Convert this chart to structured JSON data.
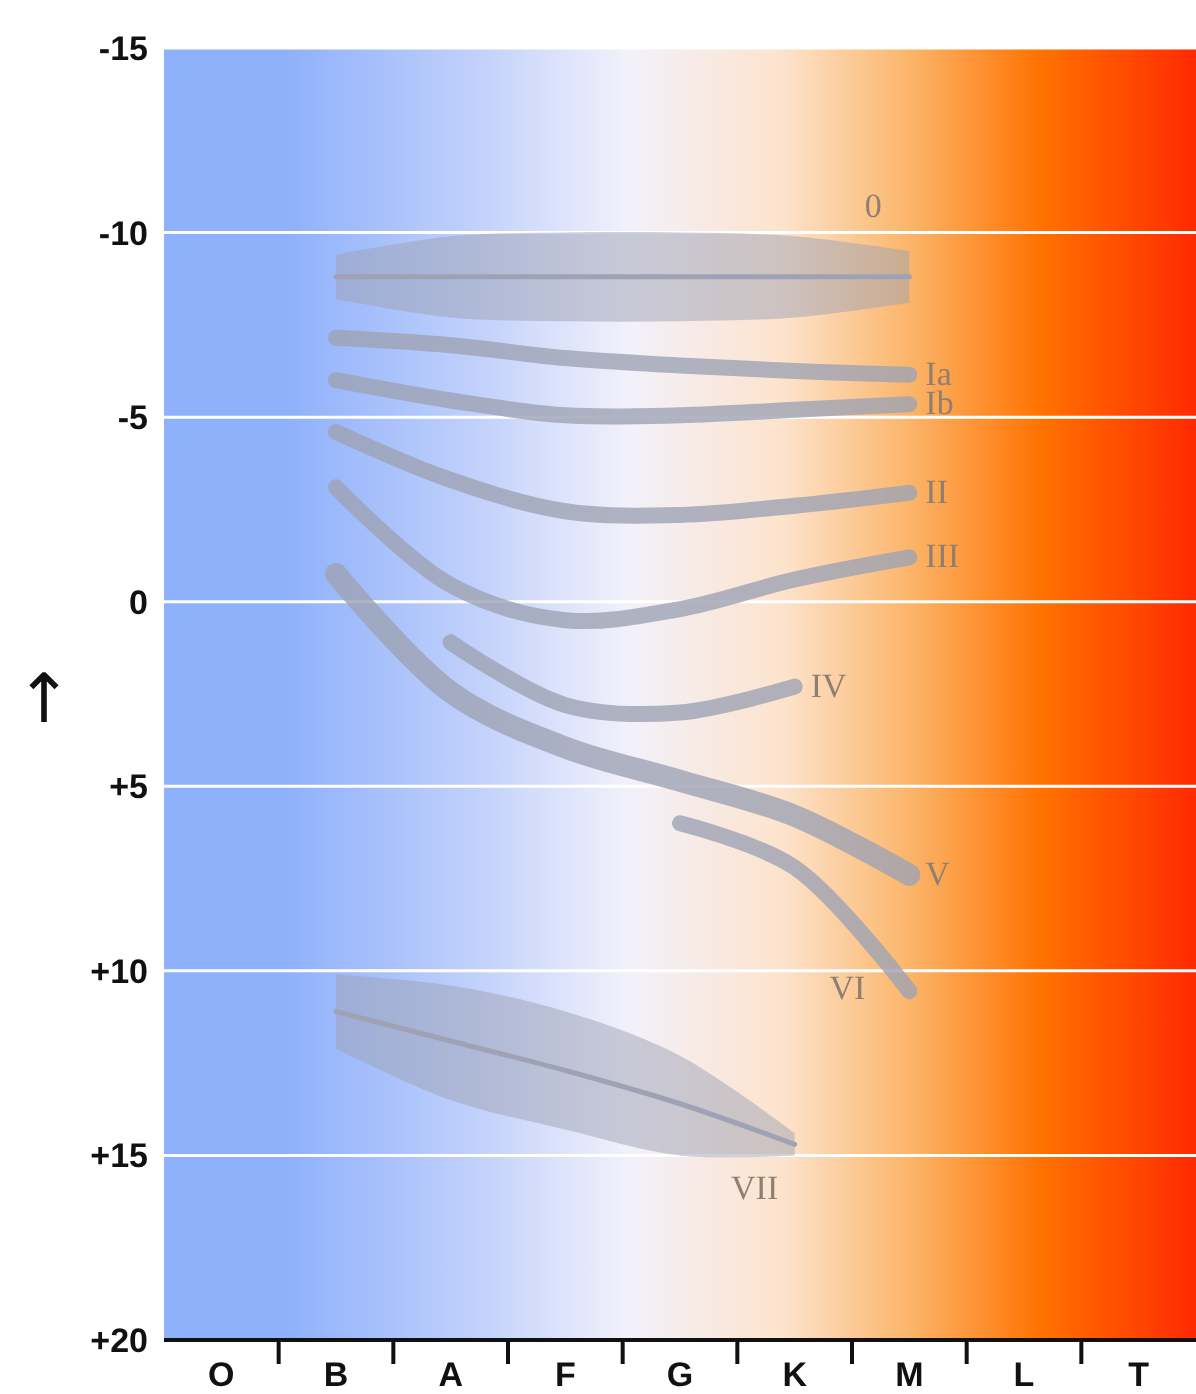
{
  "chart_data": {
    "type": "line",
    "ylabel": "↑",
    "categories": [
      "O",
      "B",
      "A",
      "F",
      "G",
      "K",
      "M",
      "L",
      "T"
    ],
    "ylim": [
      20,
      -15
    ],
    "yticks": [
      -15,
      -10,
      -5,
      0,
      {
        "value": 5,
        "label": "+5"
      },
      {
        "value": 10,
        "label": "+10"
      },
      {
        "value": 15,
        "label": "+15"
      },
      {
        "value": 20,
        "label": "+20"
      }
    ],
    "grid": "y",
    "marker": "none",
    "line_style": "solid",
    "series": [
      {
        "name": "0",
        "color": "#9ea2b4",
        "values": [
          null,
          -8.8,
          -8.8,
          -8.8,
          -8.8,
          -8.8,
          -8.8,
          null,
          null
        ],
        "lower": [
          null,
          -9.4,
          -9.9,
          -10,
          -10,
          -9.9,
          -9.5,
          null,
          null
        ],
        "upper": [
          null,
          -8.2,
          -7.7,
          -7.6,
          -7.6,
          -7.7,
          -8.1,
          null,
          null
        ]
      },
      {
        "name": "Ia",
        "color": "#9ea2b4",
        "values": [
          null,
          -7.15,
          -6.95,
          -6.6,
          -6.4,
          -6.25,
          -6.15,
          null,
          null
        ]
      },
      {
        "name": "Ib",
        "color": "#9ea2b4",
        "values": [
          null,
          -6,
          -5.45,
          -5.05,
          -5.05,
          -5.2,
          -5.35,
          null,
          null
        ]
      },
      {
        "name": "II",
        "color": "#9ea2b4",
        "values": [
          null,
          -4.6,
          -3.3,
          -2.45,
          -2.35,
          -2.6,
          -2.95,
          null,
          null
        ]
      },
      {
        "name": "III",
        "color": "#9ea2b4",
        "values": [
          null,
          -3.1,
          -0.45,
          0.5,
          0.2,
          -0.6,
          -1.2,
          null,
          null
        ]
      },
      {
        "name": "IV",
        "color": "#9ea2b4",
        "values": [
          null,
          null,
          1.1,
          2.8,
          3,
          2.3,
          null,
          null,
          null
        ]
      },
      {
        "name": "V",
        "color": "#9ea2b4",
        "values": [
          null,
          -0.75,
          2.45,
          3.95,
          4.85,
          5.8,
          7.4,
          null,
          null
        ]
      },
      {
        "name": "VI",
        "color": "#9ea2b4",
        "values": [
          null,
          null,
          null,
          null,
          6,
          7.2,
          10.55,
          null,
          null
        ]
      },
      {
        "name": "VII",
        "color": "#9ea2b4",
        "values": [
          null,
          11.1,
          11.9,
          12.7,
          13.6,
          14.7,
          null,
          null,
          null
        ],
        "lower": [
          null,
          10.1,
          10.4,
          11.1,
          12.3,
          14.4,
          null,
          null,
          null
        ],
        "upper": [
          null,
          12.1,
          13.5,
          14.3,
          15,
          15,
          null,
          null,
          null
        ]
      }
    ]
  }
}
